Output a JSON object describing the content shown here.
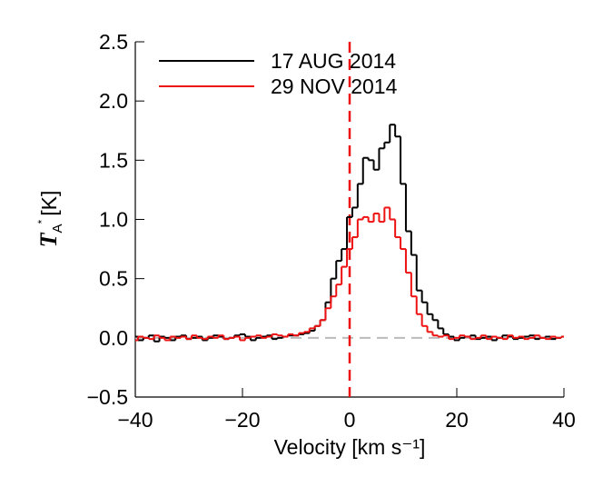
{
  "chart_data": {
    "type": "step",
    "xlabel": "Velocity [km s⁻¹]",
    "ylabel": {
      "symbol": "T",
      "subscript": "A",
      "superscript": "*",
      "unit": "[K]"
    },
    "x": [
      -40,
      -39,
      -38,
      -37,
      -36,
      -35,
      -34,
      -33,
      -32,
      -31,
      -30,
      -29,
      -28,
      -27,
      -26,
      -25,
      -24,
      -23,
      -22,
      -21,
      -20,
      -19,
      -18,
      -17,
      -16,
      -15,
      -14,
      -13,
      -12,
      -11,
      -10,
      -9,
      -8,
      -7,
      -6,
      -5,
      -4,
      -3,
      -2,
      -1,
      0,
      1,
      2,
      3,
      4,
      5,
      6,
      7,
      8,
      9,
      10,
      11,
      12,
      13,
      14,
      15,
      16,
      17,
      18,
      19,
      20,
      21,
      22,
      23,
      24,
      25,
      26,
      27,
      28,
      29,
      30,
      31,
      32,
      33,
      34,
      35,
      36,
      37,
      38,
      39,
      40
    ],
    "series": [
      {
        "name": "17 AUG 2014",
        "color": "#000000",
        "values": [
          0.01,
          -0.02,
          0.0,
          0.02,
          -0.03,
          0.01,
          0.0,
          -0.02,
          0.01,
          0.02,
          -0.01,
          0.0,
          0.01,
          -0.02,
          0.0,
          0.02,
          0.01,
          -0.01,
          0.0,
          0.02,
          0.03,
          0.01,
          -0.02,
          0.0,
          0.01,
          0.02,
          -0.01,
          0.0,
          0.01,
          0.02,
          0.02,
          0.03,
          0.04,
          0.06,
          0.1,
          0.15,
          0.3,
          0.5,
          0.65,
          0.75,
          1.02,
          1.1,
          1.3,
          1.52,
          1.5,
          1.42,
          1.6,
          1.65,
          1.8,
          1.7,
          1.3,
          0.9,
          0.7,
          0.4,
          0.3,
          0.2,
          0.15,
          0.08,
          0.03,
          0.01,
          -0.02,
          0.0,
          0.01,
          0.02,
          -0.01,
          0.0,
          0.01,
          -0.02,
          0.0,
          0.02,
          0.01,
          -0.01,
          0.0,
          0.01,
          0.02,
          -0.01,
          0.0,
          0.01,
          -0.01,
          0.0,
          0.01
        ]
      },
      {
        "name": "29 NOV 2014",
        "color": "#ee1111",
        "values": [
          -0.02,
          0.01,
          0.0,
          -0.01,
          0.02,
          0.0,
          -0.02,
          0.01,
          0.0,
          0.01,
          -0.01,
          0.02,
          0.0,
          -0.01,
          0.01,
          0.0,
          0.02,
          -0.01,
          0.0,
          0.01,
          -0.02,
          0.0,
          0.01,
          0.02,
          0.0,
          0.01,
          0.03,
          0.02,
          0.01,
          0.03,
          0.02,
          0.04,
          0.05,
          0.08,
          0.1,
          0.15,
          0.25,
          0.35,
          0.45,
          0.6,
          0.75,
          0.85,
          1.0,
          1.02,
          0.98,
          1.05,
          0.98,
          1.1,
          1.0,
          0.85,
          0.75,
          0.55,
          0.35,
          0.2,
          0.1,
          0.05,
          0.02,
          0.01,
          0.02,
          -0.01,
          0.0,
          0.02,
          0.01,
          -0.01,
          0.0,
          0.02,
          -0.01,
          0.01,
          0.0,
          -0.01,
          0.02,
          0.0,
          0.01,
          -0.01,
          0.0,
          0.02,
          0.0,
          -0.01,
          0.01,
          0.0,
          0.01
        ]
      }
    ],
    "xlim": [
      -40,
      40
    ],
    "xticks": [
      {
        "value": -40,
        "label": "−40"
      },
      {
        "value": -20,
        "label": "−20"
      },
      0,
      20,
      40
    ],
    "ylim": [
      -0.5,
      2.5
    ],
    "yticks": [
      {
        "value": -0.5,
        "label": "−0.5"
      },
      {
        "value": 0,
        "label": "0.0"
      },
      {
        "value": 0.5,
        "label": "0.5"
      },
      {
        "value": 1,
        "label": "1.0"
      },
      {
        "value": 1.5,
        "label": "1.5"
      },
      {
        "value": 2,
        "label": "2.0"
      },
      {
        "value": 2.5,
        "label": "2.5"
      }
    ],
    "reference_lines": [
      {
        "axis": "y",
        "value": 0,
        "color": "#bbbbbb"
      },
      {
        "axis": "x",
        "value": 0,
        "color": "#ee1111"
      }
    ],
    "legend": "top-left"
  }
}
